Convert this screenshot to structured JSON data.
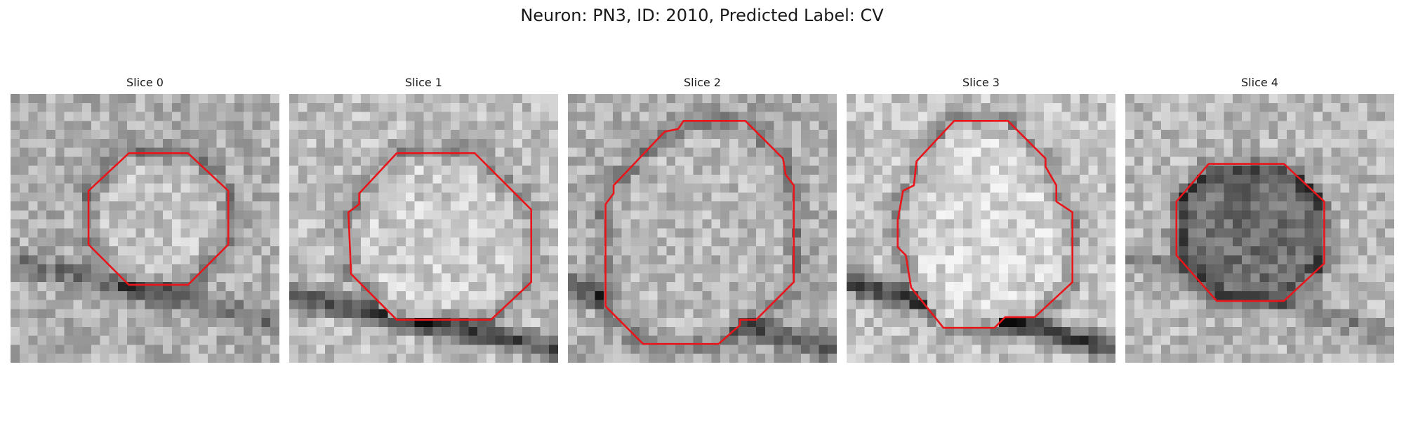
{
  "figure": {
    "title": "Neuron: PN3, ID: 2010, Predicted Label: CV"
  },
  "panels": [
    {
      "title": "Slice 0",
      "contour_color": "#e8161b",
      "contour": [
        [
          0.44,
          0.22
        ],
        [
          0.66,
          0.22
        ],
        [
          0.81,
          0.36
        ],
        [
          0.81,
          0.56
        ],
        [
          0.66,
          0.71
        ],
        [
          0.44,
          0.71
        ],
        [
          0.29,
          0.56
        ],
        [
          0.29,
          0.36
        ]
      ]
    },
    {
      "title": "Slice 1",
      "contour_color": "#e8161b",
      "contour": [
        [
          0.4,
          0.22
        ],
        [
          0.69,
          0.22
        ],
        [
          0.9,
          0.43
        ],
        [
          0.9,
          0.7
        ],
        [
          0.75,
          0.84
        ],
        [
          0.4,
          0.84
        ],
        [
          0.23,
          0.67
        ],
        [
          0.22,
          0.44
        ],
        [
          0.26,
          0.41
        ],
        [
          0.26,
          0.37
        ]
      ]
    },
    {
      "title": "Slice 2",
      "contour_color": "#e8161b",
      "contour": [
        [
          0.43,
          0.1
        ],
        [
          0.66,
          0.1
        ],
        [
          0.8,
          0.24
        ],
        [
          0.81,
          0.3
        ],
        [
          0.84,
          0.34
        ],
        [
          0.84,
          0.7
        ],
        [
          0.7,
          0.84
        ],
        [
          0.64,
          0.84
        ],
        [
          0.64,
          0.86
        ],
        [
          0.56,
          0.93
        ],
        [
          0.28,
          0.93
        ],
        [
          0.14,
          0.79
        ],
        [
          0.14,
          0.41
        ],
        [
          0.17,
          0.37
        ],
        [
          0.17,
          0.34
        ],
        [
          0.36,
          0.14
        ],
        [
          0.41,
          0.13
        ]
      ]
    },
    {
      "title": "Slice 3",
      "contour_color": "#e8161b",
      "contour": [
        [
          0.4,
          0.1
        ],
        [
          0.6,
          0.1
        ],
        [
          0.74,
          0.24
        ],
        [
          0.74,
          0.27
        ],
        [
          0.78,
          0.34
        ],
        [
          0.78,
          0.4
        ],
        [
          0.84,
          0.44
        ],
        [
          0.84,
          0.7
        ],
        [
          0.7,
          0.83
        ],
        [
          0.59,
          0.83
        ],
        [
          0.58,
          0.84
        ],
        [
          0.55,
          0.87
        ],
        [
          0.36,
          0.87
        ],
        [
          0.24,
          0.72
        ],
        [
          0.22,
          0.6
        ],
        [
          0.19,
          0.57
        ],
        [
          0.19,
          0.47
        ],
        [
          0.21,
          0.36
        ],
        [
          0.25,
          0.34
        ],
        [
          0.26,
          0.25
        ]
      ]
    },
    {
      "title": "Slice 4",
      "contour_color": "#e8161b",
      "contour": [
        [
          0.31,
          0.26
        ],
        [
          0.59,
          0.26
        ],
        [
          0.74,
          0.4
        ],
        [
          0.74,
          0.63
        ],
        [
          0.59,
          0.77
        ],
        [
          0.34,
          0.77
        ],
        [
          0.19,
          0.6
        ],
        [
          0.19,
          0.4
        ]
      ]
    }
  ]
}
